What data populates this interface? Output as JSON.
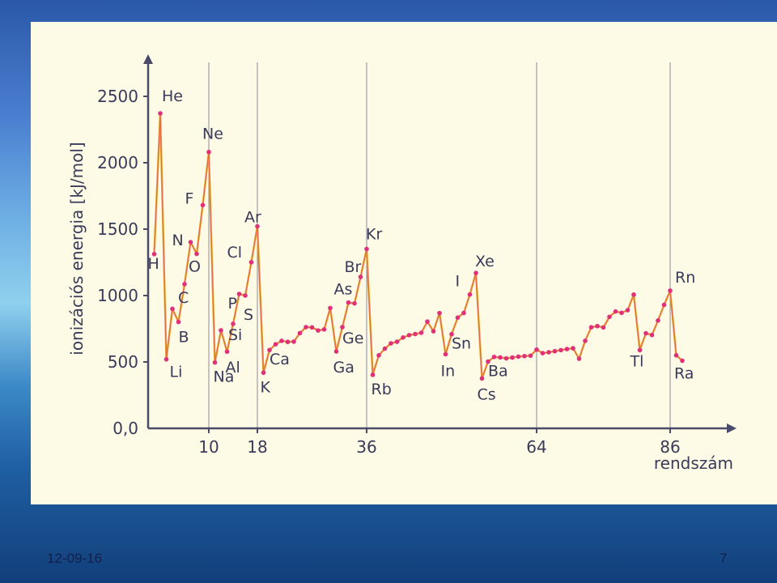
{
  "footer": {
    "date": "12-09-16",
    "page": "7"
  },
  "colors": {
    "line": "#e8a030",
    "point": "#e0307a",
    "text": "#3a3a5a",
    "panel": "#fdfbe6"
  },
  "chart_data": {
    "type": "line",
    "title": "",
    "ylabel": "ionizációs energia [kJ/mol]",
    "xlabel": "rendszám",
    "ylim": [
      0,
      2500
    ],
    "xlim": [
      1,
      88
    ],
    "yticks": [
      {
        "v": 0,
        "label": "0,0"
      },
      {
        "v": 500,
        "label": "500"
      },
      {
        "v": 1000,
        "label": "1000"
      },
      {
        "v": 1500,
        "label": "1500"
      },
      {
        "v": 2000,
        "label": "2000"
      },
      {
        "v": 2500,
        "label": "2500"
      }
    ],
    "xticks": [
      {
        "v": 10,
        "label": "10"
      },
      {
        "v": 18,
        "label": "18"
      },
      {
        "v": 36,
        "label": "36"
      },
      {
        "v": 64,
        "label": "64"
      },
      {
        "v": 86,
        "label": "86"
      }
    ],
    "gridlines_x": [
      10,
      18,
      36,
      64,
      86
    ],
    "series": [
      {
        "x": [
          1,
          2,
          3,
          4,
          5,
          6,
          7,
          8,
          9,
          10,
          11,
          12,
          13,
          14,
          15,
          16,
          17,
          18,
          19,
          20,
          21,
          22,
          23,
          24,
          25,
          26,
          27,
          28,
          29,
          30,
          31,
          32,
          33,
          34,
          35,
          36,
          37,
          38,
          39,
          40,
          41,
          42,
          43,
          44,
          45,
          46,
          47,
          48,
          49,
          50,
          51,
          52,
          53,
          54,
          55,
          56,
          57,
          58,
          59,
          60,
          61,
          62,
          63,
          64,
          65,
          66,
          67,
          68,
          69,
          70,
          71,
          72,
          73,
          74,
          75,
          76,
          77,
          78,
          79,
          80,
          81,
          82,
          83,
          84,
          85,
          86,
          87,
          88
        ],
        "values": [
          1312,
          2372,
          520,
          900,
          801,
          1086,
          1402,
          1314,
          1681,
          2081,
          496,
          738,
          578,
          787,
          1012,
          1000,
          1251,
          1521,
          419,
          590,
          633,
          659,
          651,
          653,
          717,
          762,
          760,
          737,
          745,
          906,
          579,
          762,
          947,
          941,
          1140,
          1351,
          403,
          550,
          600,
          640,
          652,
          684,
          702,
          710,
          720,
          804,
          731,
          868,
          558,
          709,
          834,
          869,
          1008,
          1170,
          376,
          503,
          538,
          534,
          527,
          533,
          540,
          544,
          547,
          593,
          566,
          573,
          581,
          589,
          597,
          603,
          524,
          659,
          761,
          770,
          760,
          840,
          880,
          870,
          890,
          1007,
          589,
          716,
          703,
          812,
          930,
          1037,
          550,
          509
        ]
      }
    ],
    "labels": [
      {
        "text": "He",
        "z": 2
      },
      {
        "text": "H",
        "z": 1
      },
      {
        "text": "Li",
        "z": 3
      },
      {
        "text": "B",
        "z": 5
      },
      {
        "text": "N",
        "z": 7
      },
      {
        "text": "C",
        "z": 6
      },
      {
        "text": "O",
        "z": 8
      },
      {
        "text": "F",
        "z": 9
      },
      {
        "text": "Ne",
        "z": 10
      },
      {
        "text": "Na",
        "z": 11
      },
      {
        "text": "Al",
        "z": 13
      },
      {
        "text": "Si",
        "z": 14
      },
      {
        "text": "S",
        "z": 16
      },
      {
        "text": "P",
        "z": 15
      },
      {
        "text": "Cl",
        "z": 17
      },
      {
        "text": "Ar",
        "z": 18
      },
      {
        "text": "K",
        "z": 19
      },
      {
        "text": "Ca",
        "z": 20
      },
      {
        "text": "Ga",
        "z": 31
      },
      {
        "text": "Ge",
        "z": 32
      },
      {
        "text": "As",
        "z": 33
      },
      {
        "text": "Br",
        "z": 35
      },
      {
        "text": "Kr",
        "z": 36
      },
      {
        "text": "Rb",
        "z": 37
      },
      {
        "text": "In",
        "z": 49
      },
      {
        "text": "Sn",
        "z": 50
      },
      {
        "text": "I",
        "z": 53
      },
      {
        "text": "Xe",
        "z": 54
      },
      {
        "text": "Cs",
        "z": 55
      },
      {
        "text": "Ba",
        "z": 56
      },
      {
        "text": "Tl",
        "z": 81
      },
      {
        "text": "Rn",
        "z": 86
      },
      {
        "text": "Ra",
        "z": 88
      }
    ]
  }
}
